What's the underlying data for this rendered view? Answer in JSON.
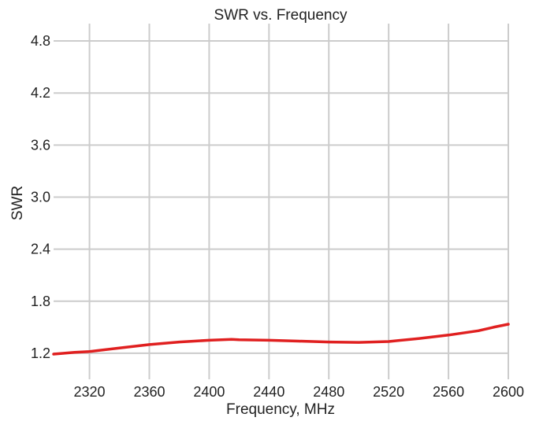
{
  "chart_data": {
    "type": "line",
    "title": "SWR vs. Frequency",
    "xlabel": "Frequency, MHz",
    "ylabel": "SWR",
    "xlim": [
      2296,
      2600
    ],
    "ylim": [
      0.9,
      5.0
    ],
    "xticks": [
      2320,
      2360,
      2400,
      2440,
      2480,
      2520,
      2560,
      2600
    ],
    "yticks": [
      1.2,
      1.8,
      2.4,
      3.0,
      3.6,
      4.2,
      4.8
    ],
    "ytick_labels": [
      "1.2",
      "1.8",
      "2.4",
      "3.0",
      "3.6",
      "4.2",
      "4.8"
    ],
    "grid": true,
    "colors": {
      "line": "#e02020",
      "grid": "#cccccc",
      "text": "#222222"
    },
    "series": [
      {
        "x": [
          2296,
          2310,
          2320,
          2340,
          2360,
          2380,
          2400,
          2415,
          2420,
          2440,
          2460,
          2480,
          2500,
          2520,
          2540,
          2560,
          2580,
          2590,
          2600
        ],
        "y": [
          1.19,
          1.21,
          1.22,
          1.26,
          1.3,
          1.33,
          1.35,
          1.36,
          1.355,
          1.35,
          1.34,
          1.33,
          1.325,
          1.335,
          1.37,
          1.41,
          1.46,
          1.5,
          1.535
        ]
      }
    ]
  }
}
